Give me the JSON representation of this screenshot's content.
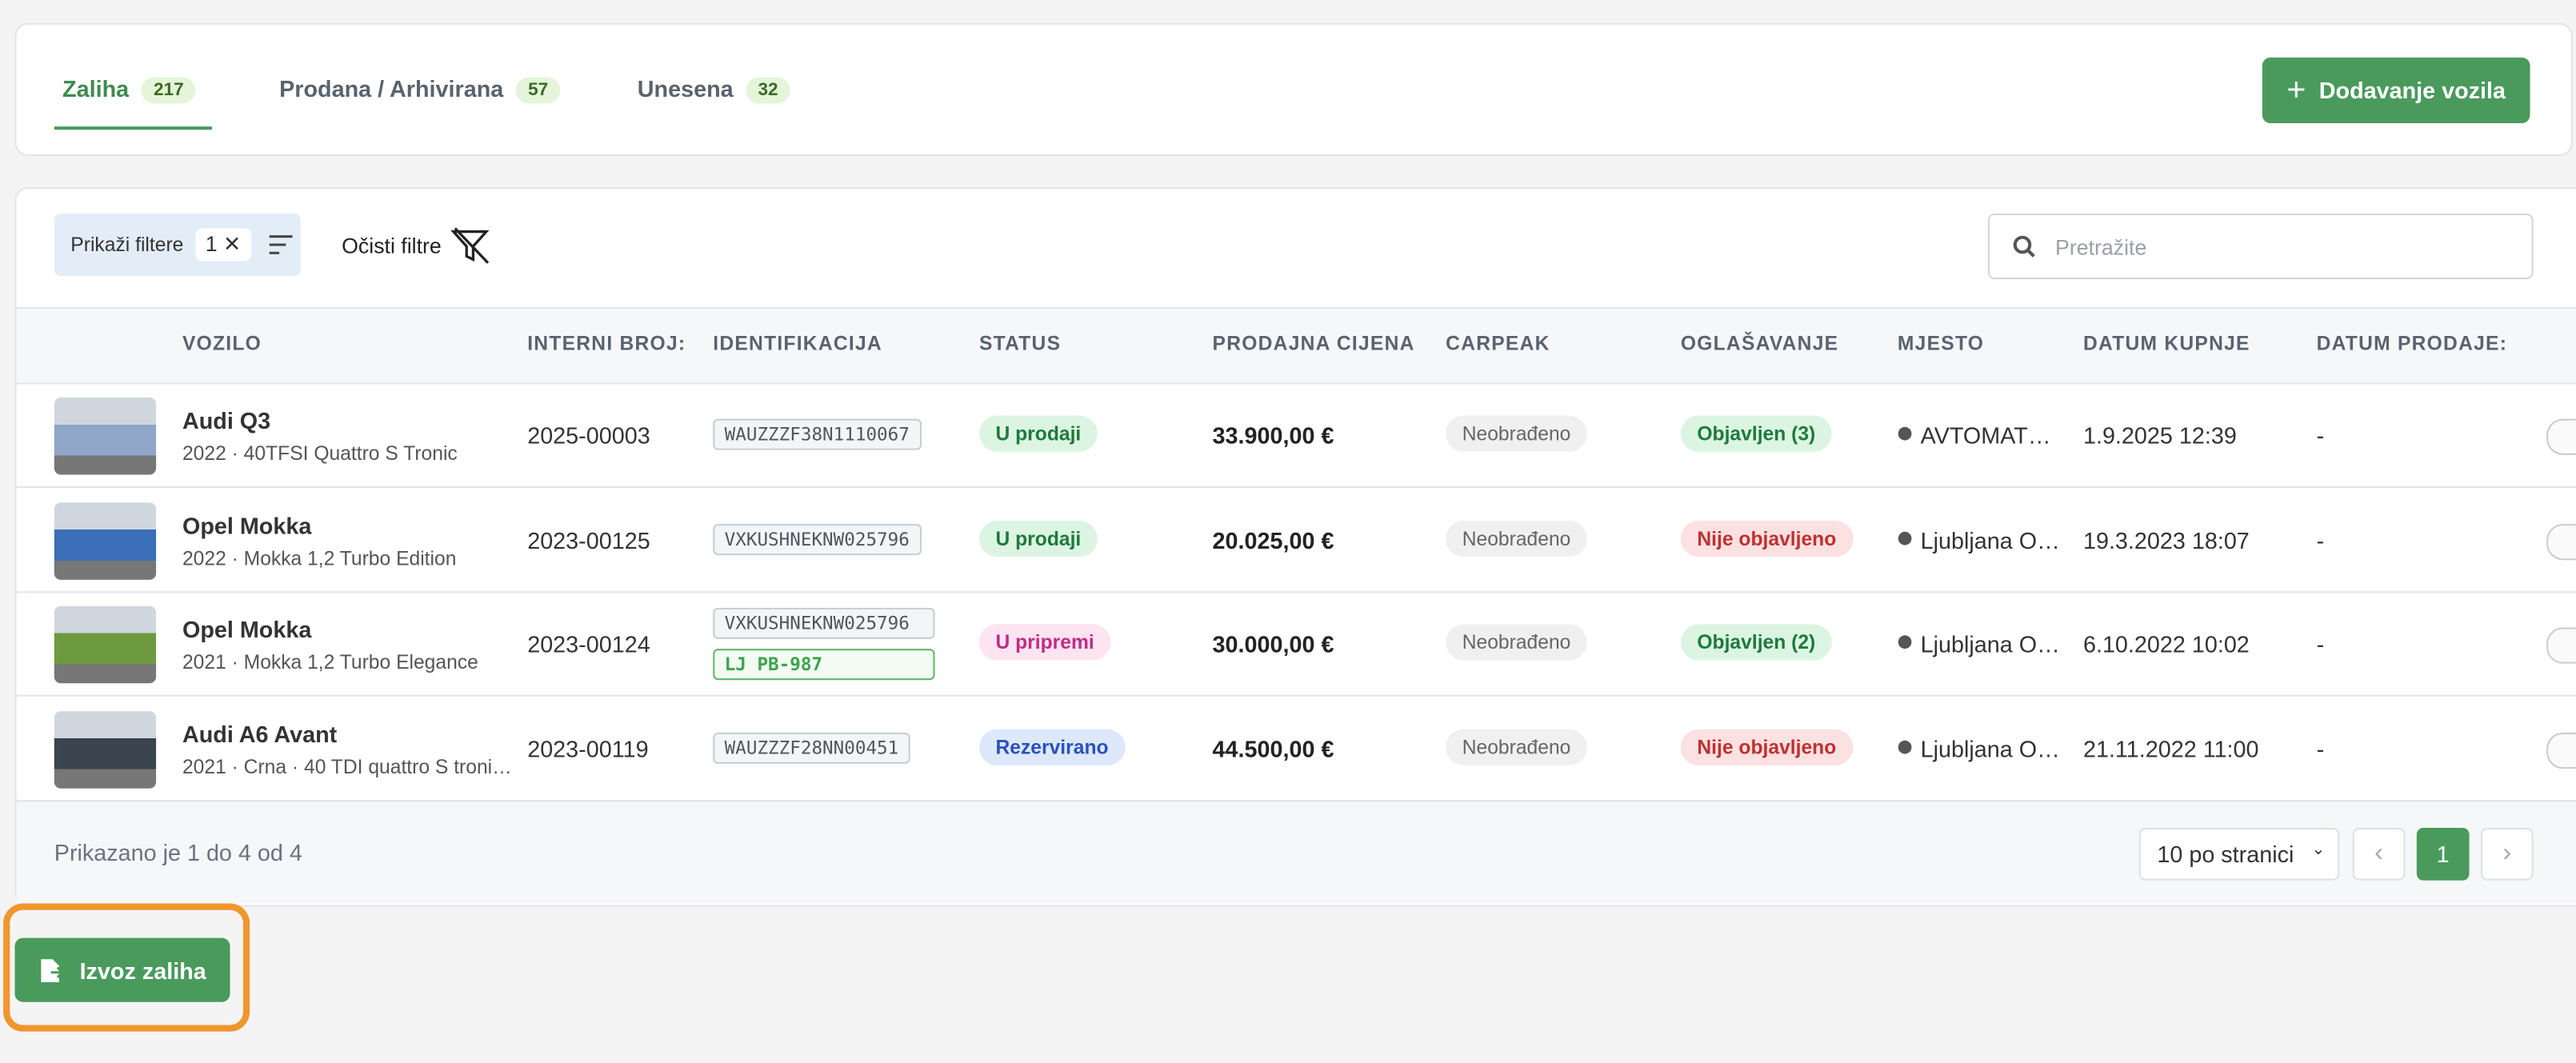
{
  "tabs": [
    {
      "label": "Zaliha",
      "count": "217"
    },
    {
      "label": "Prodana / Arhivirana",
      "count": "57"
    },
    {
      "label": "Unesena",
      "count": "32"
    }
  ],
  "add_button": "Dodavanje vozila",
  "filters": {
    "show": "Prikaži filtere",
    "count": "1",
    "clear": "Očisti filtre"
  },
  "search_placeholder": "Pretražite",
  "table": {
    "columns": [
      "VOZILO",
      "INTERNI BROJ:",
      "IDENTIFIKACIJA",
      "STATUS",
      "PRODAJNA CIJENA",
      "CARPEAK",
      "OGLAŠAVANJE",
      "MJESTO",
      "DATUM KUPNJE",
      "DATUM PRODAJE:"
    ],
    "rows": [
      {
        "name": "Audi Q3",
        "sub": "2022 · 40TFSI Quattro S Tronic",
        "internal": "2025-00003",
        "vin": "WAUZZZF38N1110067",
        "status": "U prodaji",
        "price": "33.900,00 €",
        "carpeak": "Neobrađeno",
        "ads": "Objavljen (3)",
        "location": "AVTOMAT…",
        "bought": "1.9.2025 12:39",
        "sold": "-"
      },
      {
        "name": "Opel Mokka",
        "sub": "2022 · Mokka 1,2 Turbo Edition",
        "internal": "2023-00125",
        "vin": "VXKUSHNEKNW025796",
        "status": "U prodaji",
        "price": "20.025,00 €",
        "carpeak": "Neobrađeno",
        "ads": "Nije objavljeno",
        "location": "Ljubljana O…",
        "bought": "19.3.2023 18:07",
        "sold": "-"
      },
      {
        "name": "Opel Mokka",
        "sub": "2021 · Mokka 1,2 Turbo Elegance",
        "internal": "2023-00124",
        "vin": "VXKUSHNEKNW025796",
        "plate": "LJ PB-987",
        "status": "U pripremi",
        "price": "30.000,00 €",
        "carpeak": "Neobrađeno",
        "ads": "Objavljen (2)",
        "location": "Ljubljana O…",
        "bought": "6.10.2022 10:02",
        "sold": "-"
      },
      {
        "name": "Audi A6 Avant",
        "sub": "2021 · Crna · 40 TDI quattro S troni…",
        "internal": "2023-00119",
        "vin": "WAUZZZF28NN00451",
        "status": "Rezervirano",
        "price": "44.500,00 €",
        "carpeak": "Neobrađeno",
        "ads": "Nije objavljeno",
        "location": "Ljubljana O…",
        "bought": "21.11.2022 11:00",
        "sold": "-"
      }
    ]
  },
  "footer": {
    "summary": "Prikazano je 1 do 4 od 4",
    "per_page": "10 po stranici",
    "page": "1"
  },
  "export_button": "Izvoz zaliha"
}
